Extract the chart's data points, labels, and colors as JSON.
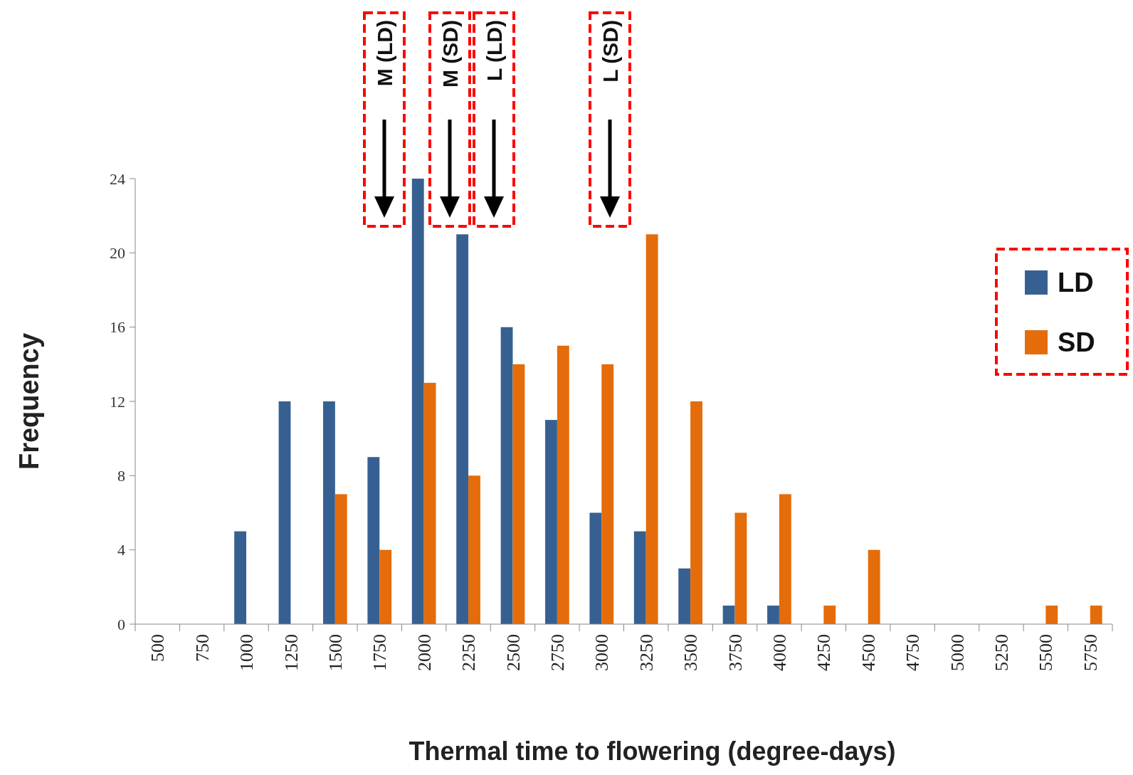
{
  "chart_data": {
    "type": "bar",
    "xlabel": "Thermal time to flowering (degree-days)",
    "ylabel": "Frequency",
    "categories": [
      "500",
      "750",
      "1000",
      "1250",
      "1500",
      "1750",
      "2000",
      "2250",
      "2500",
      "2750",
      "3000",
      "3250",
      "3500",
      "3750",
      "4000",
      "4250",
      "4500",
      "4750",
      "5000",
      "5250",
      "5500",
      "5750"
    ],
    "series": [
      {
        "name": "LD",
        "color": "#376092",
        "values": [
          0,
          0,
          5,
          12,
          12,
          9,
          24,
          21,
          16,
          11,
          6,
          5,
          3,
          1,
          1,
          0,
          0,
          0,
          0,
          0,
          0,
          0
        ]
      },
      {
        "name": "SD",
        "color": "#e46c0a",
        "values": [
          0,
          0,
          0,
          0,
          7,
          4,
          13,
          8,
          14,
          15,
          14,
          21,
          12,
          6,
          7,
          1,
          4,
          0,
          0,
          0,
          1,
          1
        ]
      }
    ],
    "ylim": [
      0,
      24
    ],
    "yticks": [
      0,
      4,
      8,
      12,
      16,
      20,
      24
    ],
    "grid": false,
    "legend": "right",
    "annotations": [
      "M (LD)",
      "M (SD)",
      "L (LD)",
      "L (SD)"
    ]
  }
}
